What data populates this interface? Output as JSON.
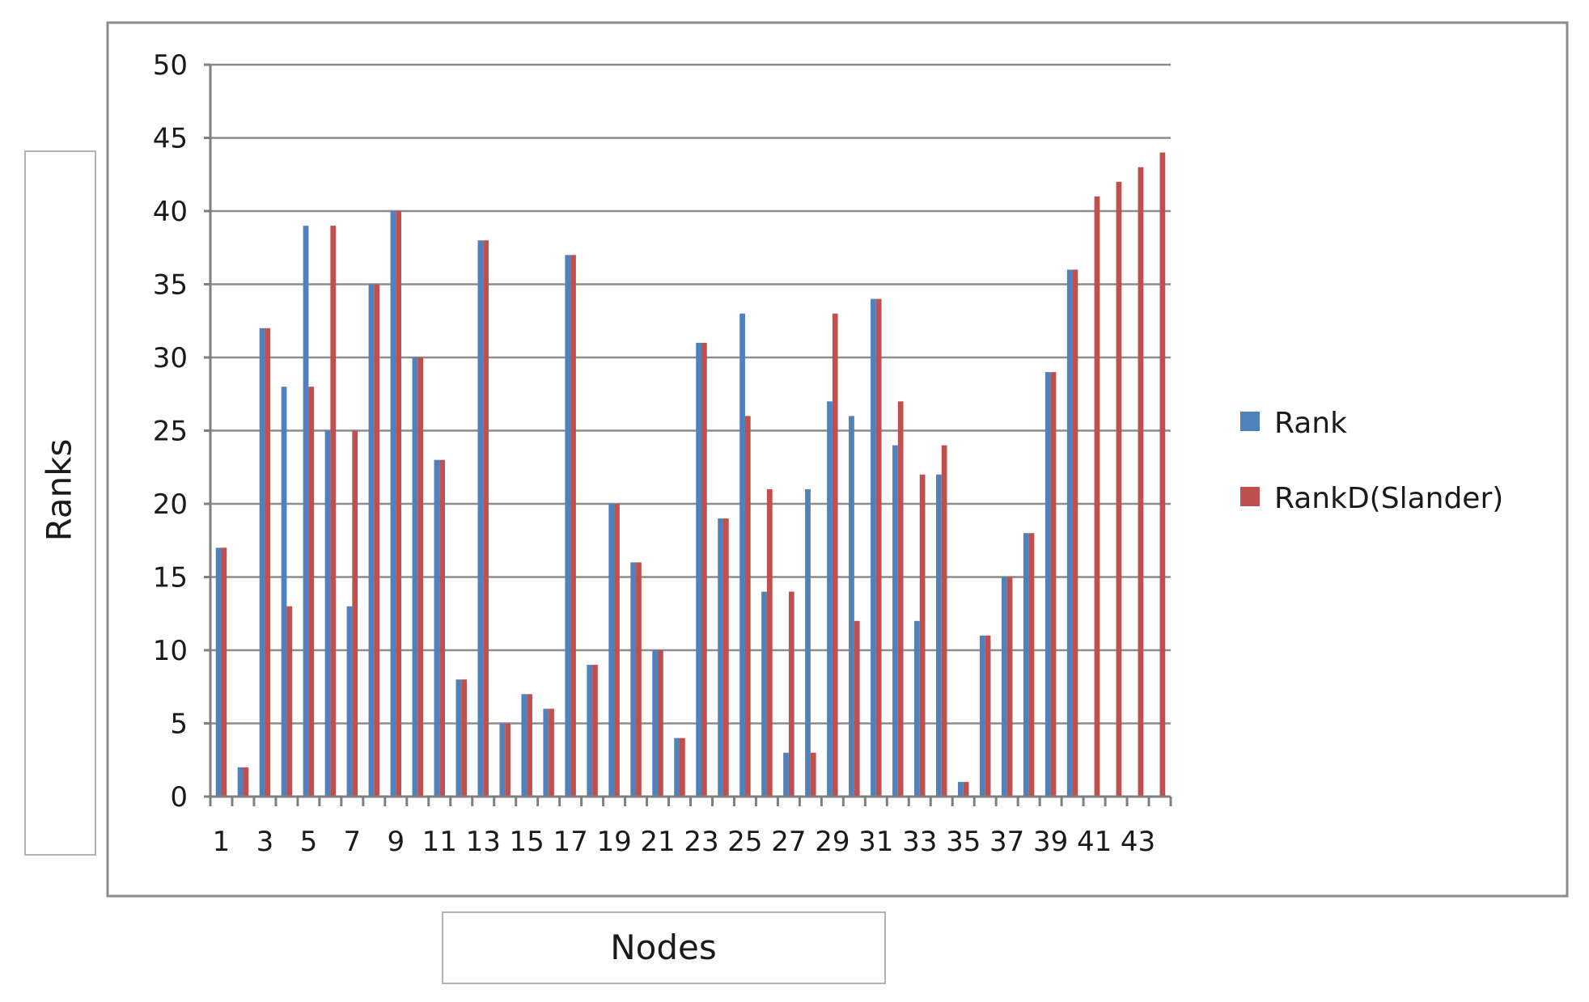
{
  "chart_data": {
    "type": "bar",
    "title": "",
    "xlabel": "Nodes",
    "ylabel": "Ranks",
    "ylim": [
      0,
      50
    ],
    "y_ticks": [
      0,
      5,
      10,
      15,
      20,
      25,
      30,
      35,
      40,
      45,
      50
    ],
    "grid": true,
    "legend_position": "right",
    "categories": [
      "1",
      "2",
      "3",
      "4",
      "5",
      "6",
      "7",
      "8",
      "9",
      "10",
      "11",
      "12",
      "13",
      "14",
      "15",
      "16",
      "17",
      "18",
      "19",
      "20",
      "21",
      "22",
      "23",
      "24",
      "25",
      "26",
      "27",
      "28",
      "29",
      "30",
      "31",
      "32",
      "33",
      "34",
      "35",
      "36",
      "37",
      "38",
      "39",
      "40",
      "41",
      "42",
      "43",
      "44"
    ],
    "x_tick_labels": [
      "1",
      "3",
      "5",
      "7",
      "9",
      "11",
      "13",
      "15",
      "17",
      "19",
      "21",
      "23",
      "25",
      "27",
      "29",
      "31",
      "33",
      "35",
      "37",
      "39",
      "41",
      "43"
    ],
    "series": [
      {
        "name": "Rank",
        "color": "#4F81BD",
        "values": [
          17,
          2,
          32,
          28,
          39,
          25,
          13,
          35,
          40,
          30,
          23,
          8,
          38,
          5,
          7,
          6,
          37,
          9,
          20,
          16,
          10,
          4,
          31,
          19,
          33,
          14,
          3,
          21,
          27,
          26,
          34,
          24,
          12,
          22,
          1,
          11,
          15,
          18,
          29,
          36,
          null,
          null,
          null,
          null
        ]
      },
      {
        "name": "RankD(Slander)",
        "color": "#C0504D",
        "values": [
          17,
          2,
          32,
          13,
          28,
          39,
          25,
          35,
          40,
          30,
          23,
          8,
          38,
          5,
          7,
          6,
          37,
          9,
          20,
          16,
          10,
          4,
          31,
          19,
          26,
          21,
          14,
          3,
          33,
          12,
          34,
          27,
          22,
          24,
          1,
          11,
          15,
          18,
          29,
          36,
          41,
          42,
          43,
          44
        ]
      }
    ]
  }
}
